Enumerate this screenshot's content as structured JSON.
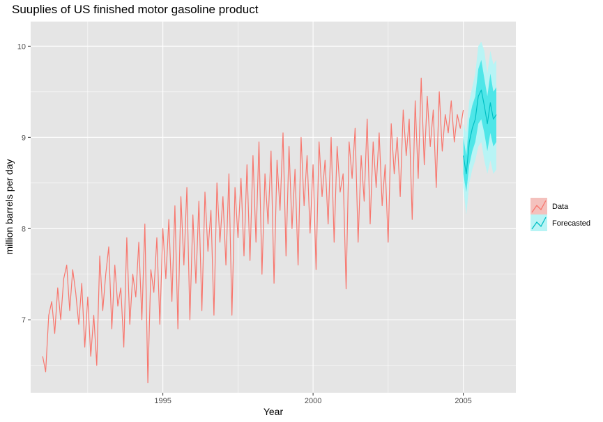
{
  "chart_data": {
    "type": "line",
    "title": "Suuplies of US finished motor gasoline product",
    "xlabel": "Year",
    "ylabel": "million barrels per day",
    "xlim": [
      1990.6,
      2006.75
    ],
    "ylim": [
      6.2,
      10.27
    ],
    "x_ticks": [
      1995,
      2000,
      2005
    ],
    "x_tick_labels": [
      "1995",
      "2000",
      "2005"
    ],
    "y_ticks": [
      7,
      8,
      9,
      10
    ],
    "y_tick_labels": [
      "7",
      "8",
      "9",
      "10"
    ],
    "grid": true,
    "legend_position": "right",
    "colors": {
      "panel_bg": "#e5e5e5",
      "grid": "#ffffff",
      "data": "#f8766d",
      "forecast": "#00bfc4",
      "band_80": "#4fe6e8",
      "band_95": "#b8f4f5",
      "data_band": "#f4c1bd"
    },
    "series": [
      {
        "name": "Data",
        "key": "data",
        "x": [
          1991.0,
          1991.1,
          1991.2,
          1991.3,
          1991.4,
          1991.5,
          1991.6,
          1991.7,
          1991.8,
          1991.9,
          1992.0,
          1992.1,
          1992.2,
          1992.3,
          1992.4,
          1992.5,
          1992.6,
          1992.7,
          1992.8,
          1992.9,
          1993.0,
          1993.1,
          1993.2,
          1993.3,
          1993.4,
          1993.5,
          1993.6,
          1993.7,
          1993.8,
          1993.9,
          1994.0,
          1994.1,
          1994.2,
          1994.3,
          1994.4,
          1994.5,
          1994.6,
          1994.7,
          1994.8,
          1994.9,
          1995.0,
          1995.1,
          1995.2,
          1995.3,
          1995.4,
          1995.5,
          1995.6,
          1995.7,
          1995.8,
          1995.9,
          1996.0,
          1996.1,
          1996.2,
          1996.3,
          1996.4,
          1996.5,
          1996.6,
          1996.7,
          1996.8,
          1996.9,
          1997.0,
          1997.1,
          1997.2,
          1997.3,
          1997.4,
          1997.5,
          1997.6,
          1997.7,
          1997.8,
          1997.9,
          1998.0,
          1998.1,
          1998.2,
          1998.3,
          1998.4,
          1998.5,
          1998.6,
          1998.7,
          1998.8,
          1998.9,
          1999.0,
          1999.1,
          1999.2,
          1999.3,
          1999.4,
          1999.5,
          1999.6,
          1999.7,
          1999.8,
          1999.9,
          2000.0,
          2000.1,
          2000.2,
          2000.3,
          2000.4,
          2000.5,
          2000.6,
          2000.7,
          2000.8,
          2000.9,
          2001.0,
          2001.1,
          2001.2,
          2001.3,
          2001.4,
          2001.5,
          2001.6,
          2001.7,
          2001.8,
          2001.9,
          2002.0,
          2002.1,
          2002.2,
          2002.3,
          2002.4,
          2002.5,
          2002.6,
          2002.7,
          2002.8,
          2002.9,
          2003.0,
          2003.1,
          2003.2,
          2003.3,
          2003.4,
          2003.5,
          2003.6,
          2003.7,
          2003.8,
          2003.9,
          2004.0,
          2004.1,
          2004.2,
          2004.3,
          2004.4,
          2004.5,
          2004.6,
          2004.7,
          2004.8,
          2004.9,
          2005.0
        ],
        "values": [
          6.6,
          6.43,
          7.05,
          7.2,
          6.85,
          7.35,
          7.0,
          7.45,
          7.6,
          7.1,
          7.55,
          7.3,
          6.95,
          7.4,
          6.7,
          7.25,
          6.6,
          7.05,
          6.5,
          7.7,
          7.1,
          7.5,
          7.8,
          6.9,
          7.6,
          7.15,
          7.35,
          6.7,
          7.9,
          6.95,
          7.5,
          7.25,
          7.85,
          7.0,
          8.05,
          6.31,
          7.55,
          7.3,
          7.9,
          6.95,
          8.0,
          7.45,
          8.1,
          7.2,
          8.25,
          6.9,
          8.35,
          7.6,
          8.45,
          7.0,
          8.15,
          7.4,
          8.3,
          7.1,
          8.4,
          7.75,
          8.2,
          7.05,
          8.5,
          7.85,
          8.35,
          7.6,
          8.6,
          7.05,
          8.45,
          7.9,
          8.55,
          7.7,
          8.7,
          7.65,
          8.8,
          7.85,
          8.95,
          7.5,
          8.6,
          8.05,
          8.85,
          7.4,
          8.75,
          8.2,
          9.05,
          7.7,
          8.9,
          8.0,
          8.65,
          7.6,
          9.0,
          8.25,
          8.8,
          7.95,
          8.7,
          7.55,
          8.95,
          8.35,
          8.75,
          8.05,
          9.0,
          7.85,
          8.9,
          8.4,
          8.6,
          7.34,
          8.95,
          8.55,
          9.1,
          7.85,
          8.8,
          8.3,
          9.2,
          8.05,
          8.95,
          8.45,
          9.05,
          8.25,
          8.7,
          7.85,
          9.15,
          8.6,
          9.0,
          8.35,
          9.3,
          8.8,
          9.2,
          8.1,
          9.4,
          8.55,
          9.65,
          8.7,
          9.45,
          8.9,
          9.3,
          8.45,
          9.5,
          8.85,
          9.25,
          9.05,
          9.4,
          8.95,
          9.25,
          9.1,
          9.3
        ]
      },
      {
        "name": "Forecasted",
        "key": "forecast",
        "x": [
          2005.0,
          2005.1,
          2005.2,
          2005.3,
          2005.4,
          2005.5,
          2005.6,
          2005.7,
          2005.8,
          2005.9,
          2006.0,
          2006.1
        ],
        "values": [
          8.8,
          8.6,
          8.95,
          9.1,
          9.2,
          9.45,
          9.52,
          9.35,
          9.15,
          9.38,
          9.2,
          9.25
        ],
        "band_80_low": [
          8.6,
          8.4,
          8.7,
          8.85,
          8.95,
          9.15,
          9.2,
          9.05,
          8.85,
          9.05,
          8.9,
          8.95
        ],
        "band_80_high": [
          9.0,
          8.8,
          9.2,
          9.35,
          9.45,
          9.75,
          9.85,
          9.65,
          9.45,
          9.7,
          9.5,
          9.55
        ],
        "band_95_low": [
          8.45,
          8.15,
          8.5,
          8.65,
          8.75,
          8.9,
          8.95,
          8.75,
          8.6,
          8.75,
          8.6,
          8.65
        ],
        "band_95_high": [
          9.15,
          9.05,
          9.4,
          9.55,
          9.7,
          10.0,
          10.05,
          9.95,
          9.7,
          9.95,
          9.8,
          9.85
        ]
      }
    ]
  }
}
